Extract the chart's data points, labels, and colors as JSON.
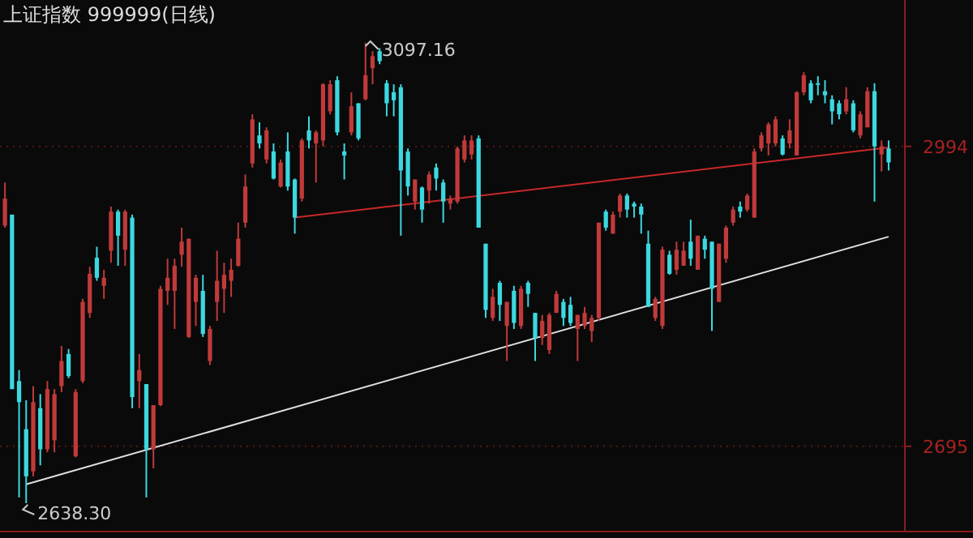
{
  "chart_data": {
    "type": "candlestick",
    "title": "上证指数 999999(日线)",
    "categories": [
      null,
      null,
      null,
      null,
      null,
      null,
      null,
      null,
      null,
      null,
      null,
      null,
      null,
      null,
      null,
      null,
      null,
      null,
      null,
      null,
      null,
      null,
      null,
      null,
      null,
      null,
      null,
      null,
      null,
      null,
      null,
      null,
      null,
      null,
      null,
      null,
      null,
      null,
      null,
      null,
      null,
      null,
      null,
      null,
      null,
      null,
      null,
      null,
      null,
      null,
      null,
      null,
      null,
      null,
      null,
      null,
      null,
      null,
      null,
      null,
      null,
      null,
      null,
      null,
      null,
      null,
      null,
      null,
      null,
      null,
      null,
      null,
      null,
      null,
      null,
      null,
      null,
      null,
      null,
      null,
      null,
      null,
      null,
      null,
      null,
      null,
      null,
      null,
      null,
      null,
      null,
      null,
      null,
      null,
      null,
      null,
      null,
      null,
      null,
      null,
      null,
      null,
      null,
      null,
      null,
      null,
      null,
      null,
      null,
      null,
      null,
      null,
      null,
      null,
      null,
      null,
      null,
      null,
      null,
      null,
      null,
      null,
      null,
      null,
      null,
      null
    ],
    "ohlc": [
      [
        2915,
        2958,
        2913,
        2942
      ],
      [
        2926,
        2926,
        2752,
        2752
      ],
      [
        2760,
        2771,
        2644,
        2739
      ],
      [
        2712,
        2741,
        2638.3,
        2665
      ],
      [
        2670,
        2755,
        2665,
        2739
      ],
      [
        2733,
        2747,
        2676,
        2692
      ],
      [
        2692,
        2760,
        2689,
        2752
      ],
      [
        2701,
        2752,
        2689,
        2747
      ],
      [
        2755,
        2795,
        2749,
        2780
      ],
      [
        2787,
        2792,
        2763,
        2765
      ],
      [
        2685,
        2752,
        2684,
        2749
      ],
      [
        2760,
        2842,
        2758,
        2839
      ],
      [
        2828,
        2874,
        2823,
        2867
      ],
      [
        2883,
        2894,
        2860,
        2863
      ],
      [
        2855,
        2871,
        2842,
        2863
      ],
      [
        2890,
        2934,
        2878,
        2929
      ],
      [
        2929,
        2931,
        2875,
        2905
      ],
      [
        2891,
        2931,
        2875,
        2929
      ],
      [
        2923,
        2926,
        2733,
        2744
      ],
      [
        2760,
        2787,
        2733,
        2771
      ],
      [
        2757,
        2757,
        2644,
        2692
      ],
      [
        2692,
        2736,
        2673,
        2736
      ],
      [
        2736,
        2855,
        2735,
        2852
      ],
      [
        2850,
        2882,
        2836,
        2863
      ],
      [
        2850,
        2882,
        2812,
        2875
      ],
      [
        2886,
        2913,
        2874,
        2899
      ],
      [
        2804,
        2902,
        2803,
        2902
      ],
      [
        2839,
        2866,
        2815,
        2863
      ],
      [
        2850,
        2866,
        2804,
        2807
      ],
      [
        2780,
        2815,
        2776,
        2812
      ],
      [
        2839,
        2890,
        2820,
        2860
      ],
      [
        2852,
        2878,
        2828,
        2866
      ],
      [
        2860,
        2882,
        2844,
        2871
      ],
      [
        2875,
        2918,
        2874,
        2902
      ],
      [
        2918,
        2966,
        2913,
        2954
      ],
      [
        2977,
        3026,
        2973,
        3021
      ],
      [
        3005,
        3018,
        2992,
        2997
      ],
      [
        2981,
        3013,
        2977,
        3010
      ],
      [
        2989,
        2997,
        2961,
        2962
      ],
      [
        2954,
        2981,
        2953,
        2978
      ],
      [
        2989,
        3008,
        2950,
        2954
      ],
      [
        2961,
        2962,
        2907,
        2923
      ],
      [
        2942,
        3002,
        2939,
        3000
      ],
      [
        3010,
        3024,
        2992,
        3000
      ],
      [
        2997,
        3010,
        2958,
        3008
      ],
      [
        3000,
        3057,
        2994,
        3056
      ],
      [
        3029,
        3060,
        3026,
        3056
      ],
      [
        3060,
        3064,
        3005,
        3008
      ],
      [
        2989,
        2997,
        2961,
        2985
      ],
      [
        3008,
        3048,
        3005,
        3034
      ],
      [
        3037,
        3037,
        3000,
        3002
      ],
      [
        3041,
        3097.16,
        3040,
        3065
      ],
      [
        3072,
        3089,
        3056,
        3084
      ],
      [
        3089,
        3092,
        3076,
        3079
      ],
      [
        3057,
        3060,
        3024,
        3037
      ],
      [
        3048,
        3056,
        3024,
        3040
      ],
      [
        3053,
        3056,
        2905,
        2970
      ],
      [
        2989,
        2992,
        2945,
        2954
      ],
      [
        2939,
        2961,
        2931,
        2961
      ],
      [
        2953,
        2954,
        2918,
        2931
      ],
      [
        2950,
        2969,
        2937,
        2966
      ],
      [
        2973,
        2977,
        2950,
        2962
      ],
      [
        2958,
        2961,
        2918,
        2939
      ],
      [
        2937,
        2945,
        2931,
        2942
      ],
      [
        2939,
        2994,
        2937,
        2992
      ],
      [
        2981,
        3005,
        2978,
        3000
      ],
      [
        2986,
        3005,
        2981,
        3000
      ],
      [
        3002,
        3005,
        2913,
        2913
      ],
      [
        2897,
        2897,
        2823,
        2831
      ],
      [
        2823,
        2852,
        2820,
        2844
      ],
      [
        2858,
        2860,
        2820,
        2836
      ],
      [
        2815,
        2839,
        2780,
        2839
      ],
      [
        2850,
        2855,
        2812,
        2818
      ],
      [
        2815,
        2855,
        2812,
        2852
      ],
      [
        2858,
        2860,
        2834,
        2847
      ],
      [
        2828,
        2828,
        2780,
        2803
      ],
      [
        2803,
        2826,
        2796,
        2820
      ],
      [
        2791,
        2828,
        2787,
        2826
      ],
      [
        2828,
        2850,
        2828,
        2847
      ],
      [
        2839,
        2842,
        2815,
        2823
      ],
      [
        2836,
        2844,
        2815,
        2818
      ],
      [
        2812,
        2826,
        2780,
        2826
      ],
      [
        2815,
        2834,
        2812,
        2828
      ],
      [
        2810,
        2826,
        2799,
        2823
      ],
      [
        2823,
        2918,
        2820,
        2918
      ],
      [
        2929,
        2931,
        2910,
        2913
      ],
      [
        2907,
        2929,
        2907,
        2926
      ],
      [
        2929,
        2947,
        2923,
        2945
      ],
      [
        2945,
        2947,
        2923,
        2931
      ],
      [
        2937,
        2939,
        2923,
        2934
      ],
      [
        2934,
        2937,
        2907,
        2926
      ],
      [
        2897,
        2910,
        2834,
        2834
      ],
      [
        2823,
        2844,
        2820,
        2842
      ],
      [
        2815,
        2894,
        2812,
        2891
      ],
      [
        2886,
        2890,
        2866,
        2867
      ],
      [
        2871,
        2899,
        2866,
        2891
      ],
      [
        2875,
        2899,
        2875,
        2890
      ],
      [
        2899,
        2921,
        2875,
        2882
      ],
      [
        2871,
        2905,
        2871,
        2905
      ],
      [
        2902,
        2905,
        2882,
        2891
      ],
      [
        2899,
        2899,
        2810,
        2852
      ],
      [
        2839,
        2897,
        2839,
        2897
      ],
      [
        2882,
        2915,
        2878,
        2913
      ],
      [
        2918,
        2934,
        2915,
        2931
      ],
      [
        2934,
        2939,
        2923,
        2929
      ],
      [
        2931,
        2947,
        2929,
        2945
      ],
      [
        2923,
        2992,
        2923,
        2989
      ],
      [
        2992,
        3008,
        2989,
        3005
      ],
      [
        2997,
        3018,
        2985,
        3016
      ],
      [
        2997,
        3024,
        2994,
        3021
      ],
      [
        3002,
        3005,
        2985,
        2986
      ],
      [
        2997,
        3021,
        2992,
        3010
      ],
      [
        2985,
        3049,
        2985,
        3048
      ],
      [
        3048,
        3068,
        3045,
        3065
      ],
      [
        3057,
        3060,
        3037,
        3040
      ],
      [
        3057,
        3064,
        3045,
        3056
      ],
      [
        3049,
        3060,
        3037,
        3045
      ],
      [
        3041,
        3045,
        3016,
        3029
      ],
      [
        3037,
        3040,
        3021,
        3026
      ],
      [
        3029,
        3053,
        3026,
        3041
      ],
      [
        3037,
        3040,
        3008,
        3010
      ],
      [
        3005,
        3029,
        3002,
        3026
      ],
      [
        3013,
        3053,
        3013,
        3049
      ],
      [
        3049,
        3057,
        2939,
        2994
      ],
      [
        2986,
        3000,
        2969,
        2994
      ],
      [
        2992,
        3000,
        2970,
        2978
      ]
    ],
    "colors": [
      "#c03a3a",
      "#3cd8e0",
      "#3cd8e0",
      "#3cd8e0",
      "#c03a3a",
      "#3cd8e0",
      "#c03a3a",
      "#c03a3a",
      "#c03a3a",
      "#3cd8e0",
      "#c03a3a",
      "#c03a3a",
      "#c03a3a",
      "#3cd8e0",
      "#c03a3a",
      "#c03a3a",
      "#3cd8e0",
      "#c03a3a",
      "#3cd8e0",
      "#c03a3a",
      "#3cd8e0",
      "#c03a3a",
      "#c03a3a",
      "#c03a3a",
      "#c03a3a",
      "#c03a3a",
      "#c03a3a",
      "#c03a3a",
      "#3cd8e0",
      "#c03a3a",
      "#c03a3a",
      "#c03a3a",
      "#c03a3a",
      "#c03a3a",
      "#c03a3a",
      "#c03a3a",
      "#3cd8e0",
      "#c03a3a",
      "#3cd8e0",
      "#c03a3a",
      "#3cd8e0",
      "#3cd8e0",
      "#c03a3a",
      "#3cd8e0",
      "#c03a3a",
      "#c03a3a",
      "#c03a3a",
      "#3cd8e0",
      "#3cd8e0",
      "#c03a3a",
      "#3cd8e0",
      "#c03a3a",
      "#c03a3a",
      "#3cd8e0",
      "#3cd8e0",
      "#3cd8e0",
      "#3cd8e0",
      "#3cd8e0",
      "#c03a3a",
      "#3cd8e0",
      "#c03a3a",
      "#3cd8e0",
      "#3cd8e0",
      "#c03a3a",
      "#c03a3a",
      "#c03a3a",
      "#c03a3a",
      "#3cd8e0",
      "#3cd8e0",
      "#c03a3a",
      "#3cd8e0",
      "#c03a3a",
      "#3cd8e0",
      "#c03a3a",
      "#3cd8e0",
      "#3cd8e0",
      "#c03a3a",
      "#c03a3a",
      "#c03a3a",
      "#3cd8e0",
      "#3cd8e0",
      "#c03a3a",
      "#c03a3a",
      "#c03a3a",
      "#c03a3a",
      "#3cd8e0",
      "#c03a3a",
      "#c03a3a",
      "#3cd8e0",
      "#3cd8e0",
      "#3cd8e0",
      "#3cd8e0",
      "#c03a3a",
      "#c03a3a",
      "#3cd8e0",
      "#c03a3a",
      "#c03a3a",
      "#3cd8e0",
      "#c03a3a",
      "#3cd8e0",
      "#3cd8e0",
      "#c03a3a",
      "#c03a3a",
      "#c03a3a",
      "#3cd8e0",
      "#c03a3a",
      "#c03a3a",
      "#c03a3a",
      "#c03a3a",
      "#c03a3a",
      "#3cd8e0",
      "#c03a3a",
      "#c03a3a",
      "#c03a3a",
      "#3cd8e0",
      "#3cd8e0",
      "#3cd8e0",
      "#3cd8e0",
      "#3cd8e0",
      "#c03a3a",
      "#3cd8e0",
      "#c03a3a",
      "#c03a3a",
      "#3cd8e0",
      "#c03a3a",
      "#3cd8e0"
    ],
    "series": [
      {
        "type": "line",
        "color": "#c82828",
        "values": [
          null,
          null,
          null,
          null,
          null,
          null,
          null,
          null,
          null,
          null,
          null,
          null,
          null,
          null,
          null,
          null,
          null,
          null,
          null,
          null,
          null,
          null,
          null,
          null,
          null,
          null,
          null,
          null,
          null,
          null,
          null,
          null,
          null,
          null,
          null,
          null,
          null,
          null,
          null,
          null,
          null,
          2923,
          null,
          null,
          null,
          null,
          null,
          null,
          null,
          null,
          null,
          null,
          null,
          null,
          null,
          null,
          null,
          null,
          null,
          null,
          null,
          null,
          null,
          null,
          null,
          null,
          null,
          null,
          null,
          null,
          null,
          null,
          null,
          null,
          null,
          null,
          null,
          null,
          null,
          null,
          null,
          null,
          null,
          null,
          null,
          null,
          null,
          null,
          null,
          null,
          null,
          null,
          null,
          null,
          null,
          null,
          null,
          null,
          null,
          null,
          null,
          null,
          null,
          null,
          null,
          null,
          null,
          null,
          null,
          null,
          null,
          null,
          null,
          null,
          null,
          null,
          null,
          null,
          null,
          null,
          null,
          null,
          null,
          null,
          null,
          2993
        ]
      },
      {
        "type": "line",
        "color": "#e0e0e0",
        "values": [
          null,
          null,
          null,
          2657,
          null,
          null,
          null,
          null,
          null,
          null,
          null,
          null,
          null,
          null,
          null,
          null,
          null,
          null,
          null,
          null,
          null,
          null,
          null,
          null,
          null,
          null,
          null,
          null,
          null,
          null,
          null,
          null,
          null,
          null,
          null,
          null,
          null,
          null,
          null,
          null,
          null,
          null,
          null,
          null,
          null,
          null,
          null,
          null,
          null,
          null,
          null,
          null,
          null,
          null,
          null,
          null,
          null,
          null,
          null,
          null,
          null,
          null,
          null,
          null,
          null,
          null,
          null,
          null,
          null,
          null,
          null,
          null,
          null,
          null,
          null,
          null,
          null,
          null,
          null,
          null,
          null,
          null,
          null,
          null,
          null,
          null,
          null,
          null,
          null,
          null,
          null,
          null,
          null,
          null,
          null,
          null,
          null,
          null,
          null,
          null,
          null,
          null,
          null,
          null,
          null,
          null,
          null,
          null,
          null,
          null,
          null,
          null,
          null,
          null,
          null,
          null,
          null,
          null,
          null,
          null,
          null,
          null,
          null,
          null,
          null,
          2904
        ]
      }
    ],
    "ylim": [
      2610,
      3140
    ],
    "yticks": [
      2695,
      2994
    ],
    "tick_labels": "y",
    "grid": "y",
    "annotations": [
      "3097.16",
      "2638.30"
    ]
  }
}
